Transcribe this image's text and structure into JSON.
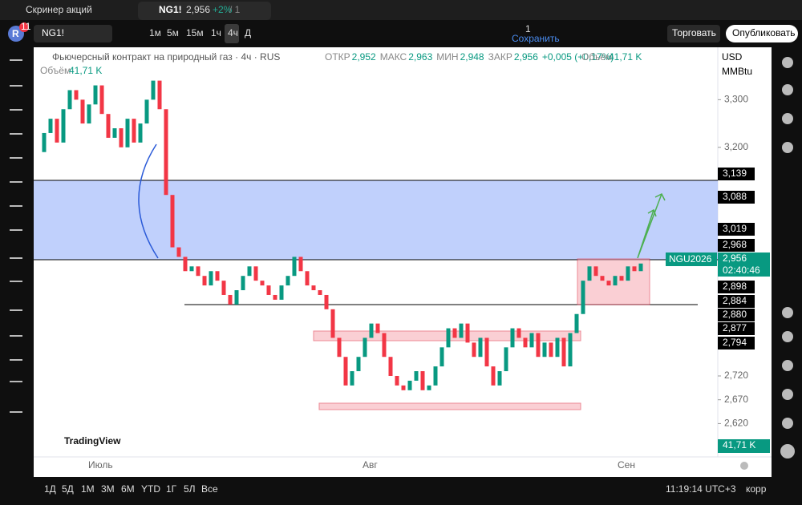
{
  "tabs": [
    {
      "label": "Скринер акций"
    },
    {
      "label": "NG1!",
      "price": "2,956",
      "change": "+2%",
      "count": "/ 1"
    }
  ],
  "account": {
    "initial": "R",
    "badge": "11"
  },
  "toolbar": {
    "symbol": "NG1!",
    "intervals": [
      "1м",
      "5м",
      "15м",
      "1ч",
      "4ч",
      "Д"
    ],
    "layout_count": "1",
    "save": "Сохранить",
    "trade": "Торговать",
    "publish": "Опубликовать"
  },
  "legend": {
    "title": "Фьючерсный контракт на природный газ · 4ч · RUS",
    "stats": [
      {
        "label": "ОТКР",
        "value": "2,952"
      },
      {
        "label": "МАКС",
        "value": "2,963"
      },
      {
        "label": "МИН",
        "value": "2,948"
      },
      {
        "label": "ЗАКР",
        "value": "2,956"
      }
    ],
    "change": "+0,005 (+0,17%)",
    "volume_label": "Объём",
    "volume": "41,71 K"
  },
  "scale": {
    "currency": "USD",
    "unit": "MMBtu"
  },
  "price_labels": [
    "3,139",
    "3,088",
    "3,019",
    "2,968",
    "2,898",
    "2,884",
    "2,880",
    "2,877",
    "2,794"
  ],
  "current": {
    "ticker": "NGU2026",
    "price": "2,956",
    "countdown": "02:40:46"
  },
  "volume_badge": "41,71 K",
  "time_labels": [
    "Июль",
    "Авг",
    "Сен"
  ],
  "ranges": [
    "1Д",
    "5Д",
    "1М",
    "3М",
    "6М",
    "YTD",
    "1Г",
    "5Л",
    "Все"
  ],
  "clock": "11:19:14 UTC+3",
  "adjust": "корр",
  "watermark": "TradingView",
  "chart_data": {
    "type": "candlestick",
    "up_color": "#089981",
    "down_color": "#f23645",
    "values": [
      3190,
      3230,
      3260,
      3210,
      3280,
      3320,
      3300,
      3250,
      3290,
      3330,
      3270,
      3220,
      3240,
      3200,
      3260,
      3210,
      3250,
      3300,
      3340,
      3280,
      3100,
      2990,
      2970,
      2940,
      2950,
      2930,
      2910,
      2940,
      2920,
      2890,
      2870,
      2900,
      2930,
      2950,
      2920,
      2910,
      2890,
      2880,
      2910,
      2930,
      2970,
      2940,
      2910,
      2900,
      2890,
      2860,
      2800,
      2760,
      2700,
      2730,
      2760,
      2800,
      2830,
      2810,
      2760,
      2720,
      2700,
      2690,
      2710,
      2730,
      2690,
      2700,
      2740,
      2780,
      2820,
      2800,
      2830,
      2790,
      2760,
      2800,
      2740,
      2700,
      2730,
      2780,
      2820,
      2800,
      2780,
      2810,
      2760,
      2790,
      2760,
      2800,
      2740,
      2810,
      2850,
      2920,
      2950,
      2930,
      2920,
      2910,
      2930,
      2920,
      2950,
      2940,
      2956
    ],
    "ylim": [
      2550,
      3410
    ],
    "yticks": [
      {
        "value": 3300,
        "label": "3,300"
      },
      {
        "value": 3200,
        "label": "3,200"
      },
      {
        "value": 2720,
        "label": "2,720"
      },
      {
        "value": 2670,
        "label": "2,670"
      },
      {
        "value": 2620,
        "label": "2,620"
      }
    ]
  }
}
